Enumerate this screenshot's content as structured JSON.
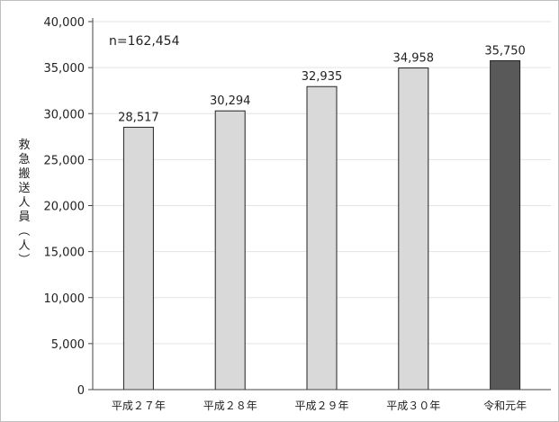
{
  "chart_data": {
    "type": "bar",
    "title": "",
    "xlabel": "",
    "ylabel": "救急搬送人員（人）",
    "ylim": [
      0,
      40000
    ],
    "yticks": [
      "0",
      "5,000",
      "10,000",
      "15,000",
      "20,000",
      "25,000",
      "30,000",
      "35,000",
      "40,000"
    ],
    "categories": [
      "平成２７年",
      "平成２８年",
      "平成２９年",
      "平成３０年",
      "令和元年"
    ],
    "values": [
      28517,
      30294,
      32935,
      34958,
      35750
    ],
    "value_labels": [
      "28,517",
      "30,294",
      "32,935",
      "34,958",
      "35,750"
    ],
    "bar_colors": [
      "#d9d9d9",
      "#d9d9d9",
      "#d9d9d9",
      "#d9d9d9",
      "#595959"
    ],
    "annotation": "n=162,454",
    "grid": true,
    "legend": "none"
  }
}
